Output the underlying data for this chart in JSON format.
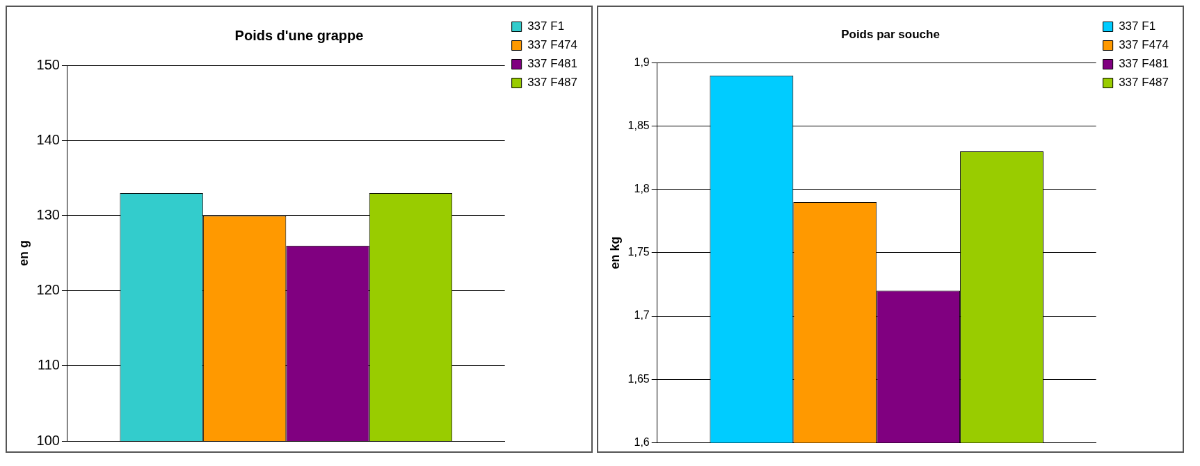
{
  "chart_data": [
    {
      "type": "bar",
      "title": "Poids d'une grappe",
      "ylabel": "en g",
      "categories": [
        null
      ],
      "series": [
        {
          "name": "337 F1",
          "color": "#33cccc",
          "values": [
            133
          ]
        },
        {
          "name": "337 F474",
          "color": "#ff9900",
          "values": [
            130
          ]
        },
        {
          "name": "337 F481",
          "color": "#800080",
          "values": [
            126
          ]
        },
        {
          "name": "337 F487",
          "color": "#99cc00",
          "values": [
            133
          ]
        }
      ],
      "ylim": [
        100,
        150
      ],
      "yticks": [
        100,
        110,
        120,
        130,
        140,
        150
      ],
      "grid": "y",
      "legend": "top right",
      "tick_labels": "y"
    },
    {
      "type": "bar",
      "title": "Poids par souche",
      "ylabel": "en kg",
      "categories": [
        null
      ],
      "series": [
        {
          "name": "337 F1",
          "color": "#00ccff",
          "values": [
            1.89
          ]
        },
        {
          "name": "337 F474",
          "color": "#ff9900",
          "values": [
            1.79
          ]
        },
        {
          "name": "337 F481",
          "color": "#800080",
          "values": [
            1.72
          ]
        },
        {
          "name": "337 F487",
          "color": "#99cc00",
          "values": [
            1.83
          ]
        }
      ],
      "ylim": [
        1.6,
        1.9
      ],
      "yticks": [
        {
          "value": 1.6,
          "label": "1,6"
        },
        {
          "value": 1.65,
          "label": "1,65"
        },
        {
          "value": 1.7,
          "label": "1,7"
        },
        {
          "value": 1.75,
          "label": "1,75"
        },
        {
          "value": 1.8,
          "label": "1,8"
        },
        {
          "value": 1.85,
          "label": "1,85"
        },
        {
          "value": 1.9,
          "label": "1,9"
        }
      ],
      "grid": "y",
      "legend": "top right",
      "tick_labels": "y"
    }
  ]
}
